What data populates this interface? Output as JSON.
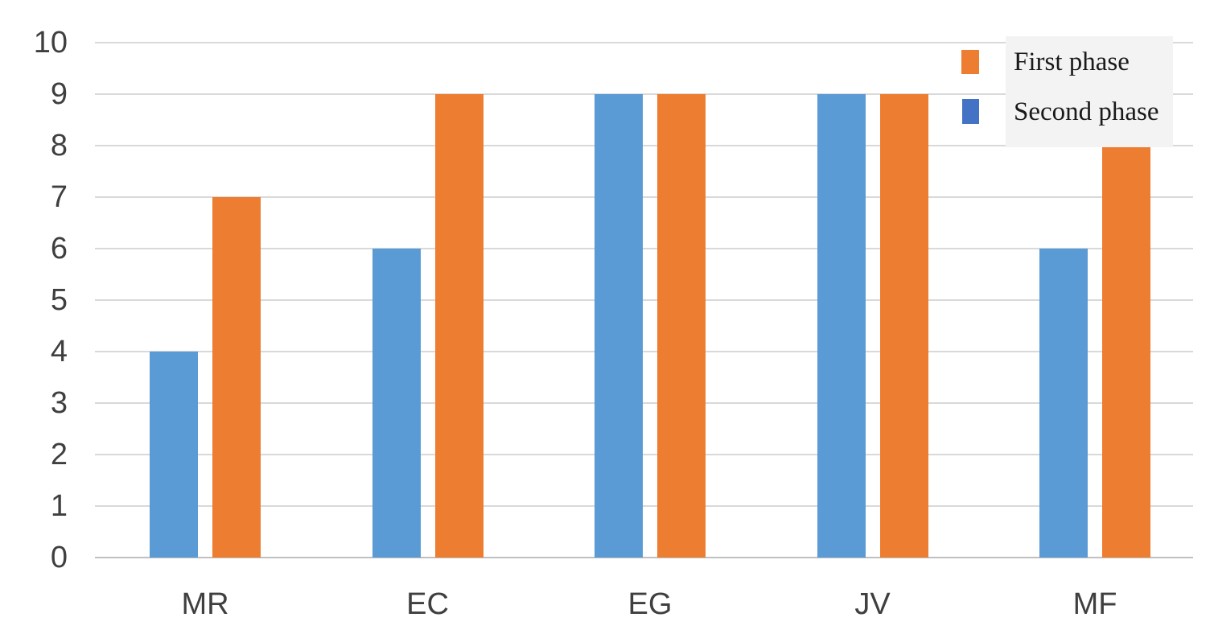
{
  "chart_data": {
    "type": "bar",
    "title": "",
    "xlabel": "",
    "ylabel": "",
    "categories": [
      "MR",
      "EC",
      "EG",
      "JV",
      "MF"
    ],
    "series": [
      {
        "name": "First phase",
        "values": [
          7,
          9,
          9,
          9,
          8
        ],
        "bar_color": "#ED7D31",
        "legend_marker_color": "#ED7D31",
        "bar_column": 1
      },
      {
        "name": "Second phase",
        "values": [
          4,
          6,
          9,
          9,
          6
        ],
        "bar_color": "#5B9BD5",
        "legend_marker_color": "#4472C4",
        "bar_column": 0
      }
    ],
    "ylim": [
      0,
      10
    ],
    "y_ticks": [
      0,
      1,
      2,
      3,
      4,
      5,
      6,
      7,
      8,
      9,
      10
    ],
    "grid": true,
    "legend_position": "top-right",
    "colors": {
      "background": "#FFFFFF",
      "gridline": "#D9D9D9",
      "baseline": "#C0C0C0",
      "tick_label": "#3F3F3F",
      "legend_text": "#1A1A1A",
      "legend_bg": "#F3F3F3"
    }
  }
}
